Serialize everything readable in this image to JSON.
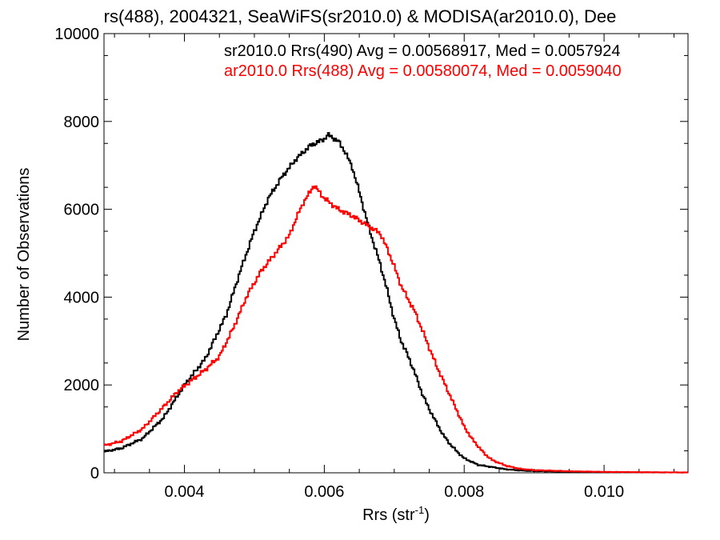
{
  "chart_data": {
    "type": "line",
    "title": "rs(488), 2004321, SeaWiFS(sr2010.0) & MODISA(ar2010.0), Dee",
    "xlabel": "Rrs (str",
    "xlabel_sup": "-1",
    "xlabel_close": ")",
    "ylabel": "Number of Observations",
    "xlim": [
      0.00285,
      0.0112
    ],
    "ylim": [
      0,
      10000
    ],
    "xticks": [
      0.004,
      0.006,
      0.008,
      0.01
    ],
    "xtick_labels": [
      "0.004",
      "0.006",
      "0.008",
      "0.010"
    ],
    "yticks": [
      0,
      2000,
      4000,
      6000,
      8000,
      10000
    ],
    "ytick_labels": [
      "0",
      "2000",
      "4000",
      "6000",
      "8000",
      "10000"
    ],
    "step": "histogram",
    "legend_position": "top-right",
    "series": [
      {
        "name": "sr2010.0 Rrs(490) Avg = 0.00568917, Med = 0.0057924",
        "color": "#000000",
        "points": [
          [
            0.00285,
            480
          ],
          [
            0.0031,
            560
          ],
          [
            0.0034,
            780
          ],
          [
            0.0037,
            1250
          ],
          [
            0.004,
            2000
          ],
          [
            0.0043,
            2600
          ],
          [
            0.0046,
            3600
          ],
          [
            0.0048,
            4600
          ],
          [
            0.005,
            5500
          ],
          [
            0.0052,
            6250
          ],
          [
            0.0054,
            6750
          ],
          [
            0.0056,
            7150
          ],
          [
            0.0058,
            7450
          ],
          [
            0.006,
            7600
          ],
          [
            0.00605,
            7700
          ],
          [
            0.0062,
            7550
          ],
          [
            0.0063,
            7300
          ],
          [
            0.0064,
            6950
          ],
          [
            0.0065,
            6400
          ],
          [
            0.0066,
            5800
          ],
          [
            0.0067,
            5250
          ],
          [
            0.0068,
            4750
          ],
          [
            0.0069,
            4150
          ],
          [
            0.007,
            3500
          ],
          [
            0.0071,
            3000
          ],
          [
            0.0072,
            2650
          ],
          [
            0.0073,
            2250
          ],
          [
            0.0074,
            1800
          ],
          [
            0.0075,
            1450
          ],
          [
            0.0076,
            1150
          ],
          [
            0.0077,
            860
          ],
          [
            0.0078,
            650
          ],
          [
            0.0079,
            480
          ],
          [
            0.008,
            330
          ],
          [
            0.0082,
            180
          ],
          [
            0.0084,
            130
          ],
          [
            0.0086,
            80
          ],
          [
            0.0088,
            55
          ],
          [
            0.009,
            40
          ],
          [
            0.0095,
            25
          ],
          [
            0.01,
            15
          ],
          [
            0.0106,
            10
          ],
          [
            0.0112,
            8
          ]
        ]
      },
      {
        "name": "ar2010.0 Rrs(488) Avg = 0.00580074, Med = 0.0059040",
        "color": "#ff0000",
        "points": [
          [
            0.00285,
            620
          ],
          [
            0.0031,
            720
          ],
          [
            0.0034,
            1000
          ],
          [
            0.0037,
            1500
          ],
          [
            0.0039,
            1850
          ],
          [
            0.0041,
            2100
          ],
          [
            0.0043,
            2350
          ],
          [
            0.0045,
            2650
          ],
          [
            0.0047,
            3300
          ],
          [
            0.0049,
            4050
          ],
          [
            0.0051,
            4600
          ],
          [
            0.0053,
            5000
          ],
          [
            0.0055,
            5400
          ],
          [
            0.0056,
            5800
          ],
          [
            0.0057,
            6150
          ],
          [
            0.0058,
            6400
          ],
          [
            0.00585,
            6550
          ],
          [
            0.006,
            6250
          ],
          [
            0.0062,
            6000
          ],
          [
            0.0064,
            5850
          ],
          [
            0.0066,
            5650
          ],
          [
            0.0068,
            5450
          ],
          [
            0.0069,
            5100
          ],
          [
            0.007,
            4700
          ],
          [
            0.0071,
            4250
          ],
          [
            0.0072,
            3950
          ],
          [
            0.0073,
            3650
          ],
          [
            0.0074,
            3250
          ],
          [
            0.0075,
            2850
          ],
          [
            0.0076,
            2450
          ],
          [
            0.0077,
            2100
          ],
          [
            0.0078,
            1750
          ],
          [
            0.0079,
            1400
          ],
          [
            0.008,
            1050
          ],
          [
            0.0081,
            800
          ],
          [
            0.0082,
            600
          ],
          [
            0.0083,
            420
          ],
          [
            0.0084,
            290
          ],
          [
            0.0086,
            160
          ],
          [
            0.0088,
            90
          ],
          [
            0.009,
            60
          ],
          [
            0.0095,
            35
          ],
          [
            0.01,
            20
          ],
          [
            0.0106,
            12
          ],
          [
            0.0112,
            8
          ]
        ]
      }
    ]
  }
}
